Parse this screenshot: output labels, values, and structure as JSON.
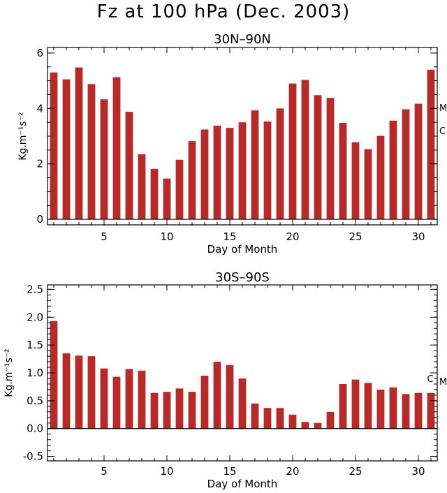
{
  "figure": {
    "title": "Fz at 100 hPa (Dec. 2003)"
  },
  "colors": {
    "bar": "#b72a2a",
    "axis": "#000000"
  },
  "chart_data": [
    {
      "type": "bar",
      "title": "30N–90N",
      "xlabel": "Day of Month",
      "ylabel": "Kg.m⁻¹s⁻²",
      "xlim": [
        0.5,
        31.5
      ],
      "ylim": [
        -0.2,
        6.2
      ],
      "xticks": [
        5,
        10,
        15,
        20,
        25,
        30
      ],
      "yticks": [
        0,
        2,
        4,
        6
      ],
      "ytick_labels": [
        "0",
        "2",
        "4",
        "6"
      ],
      "categories": [
        1,
        2,
        3,
        4,
        5,
        6,
        7,
        8,
        9,
        10,
        11,
        12,
        13,
        14,
        15,
        16,
        17,
        18,
        19,
        20,
        21,
        22,
        23,
        24,
        25,
        26,
        27,
        28,
        29,
        30,
        31
      ],
      "values": [
        5.3,
        5.05,
        5.48,
        4.88,
        4.33,
        5.13,
        3.88,
        2.35,
        1.82,
        1.47,
        2.15,
        2.82,
        3.24,
        3.38,
        3.3,
        3.5,
        3.93,
        3.53,
        4.0,
        4.9,
        5.03,
        4.48,
        4.38,
        3.48,
        2.78,
        2.53,
        3.01,
        3.56,
        3.97,
        4.17,
        5.4
      ],
      "annotations": [
        {
          "text": "M",
          "value": 4.03
        },
        {
          "text": "C",
          "value": 3.2
        }
      ]
    },
    {
      "type": "bar",
      "title": "30S–90S",
      "xlabel": "Day of Month",
      "ylabel": "Kg.m⁻¹s⁻²",
      "xlim": [
        0.5,
        31.5
      ],
      "ylim": [
        -0.58,
        2.58
      ],
      "xticks": [
        5,
        10,
        15,
        20,
        25,
        30
      ],
      "yticks": [
        -0.5,
        0.0,
        0.5,
        1.0,
        1.5,
        2.0,
        2.5
      ],
      "ytick_labels": [
        "-0.5",
        "0.0",
        "0.5",
        "1.0",
        "1.5",
        "2.0",
        "2.5"
      ],
      "categories": [
        1,
        2,
        3,
        4,
        5,
        6,
        7,
        8,
        9,
        10,
        11,
        12,
        13,
        14,
        15,
        16,
        17,
        18,
        19,
        20,
        21,
        22,
        23,
        24,
        25,
        26,
        27,
        28,
        29,
        30,
        31
      ],
      "values": [
        1.93,
        1.35,
        1.31,
        1.3,
        1.08,
        0.93,
        1.07,
        1.04,
        0.64,
        0.66,
        0.72,
        0.66,
        0.95,
        1.2,
        1.14,
        0.9,
        0.45,
        0.37,
        0.37,
        0.25,
        0.12,
        0.1,
        0.3,
        0.8,
        0.88,
        0.82,
        0.7,
        0.74,
        0.62,
        0.64,
        0.64
      ],
      "annotations": [
        {
          "text": "C",
          "value": 0.9
        },
        {
          "text": "M",
          "value": 0.85
        }
      ]
    }
  ]
}
